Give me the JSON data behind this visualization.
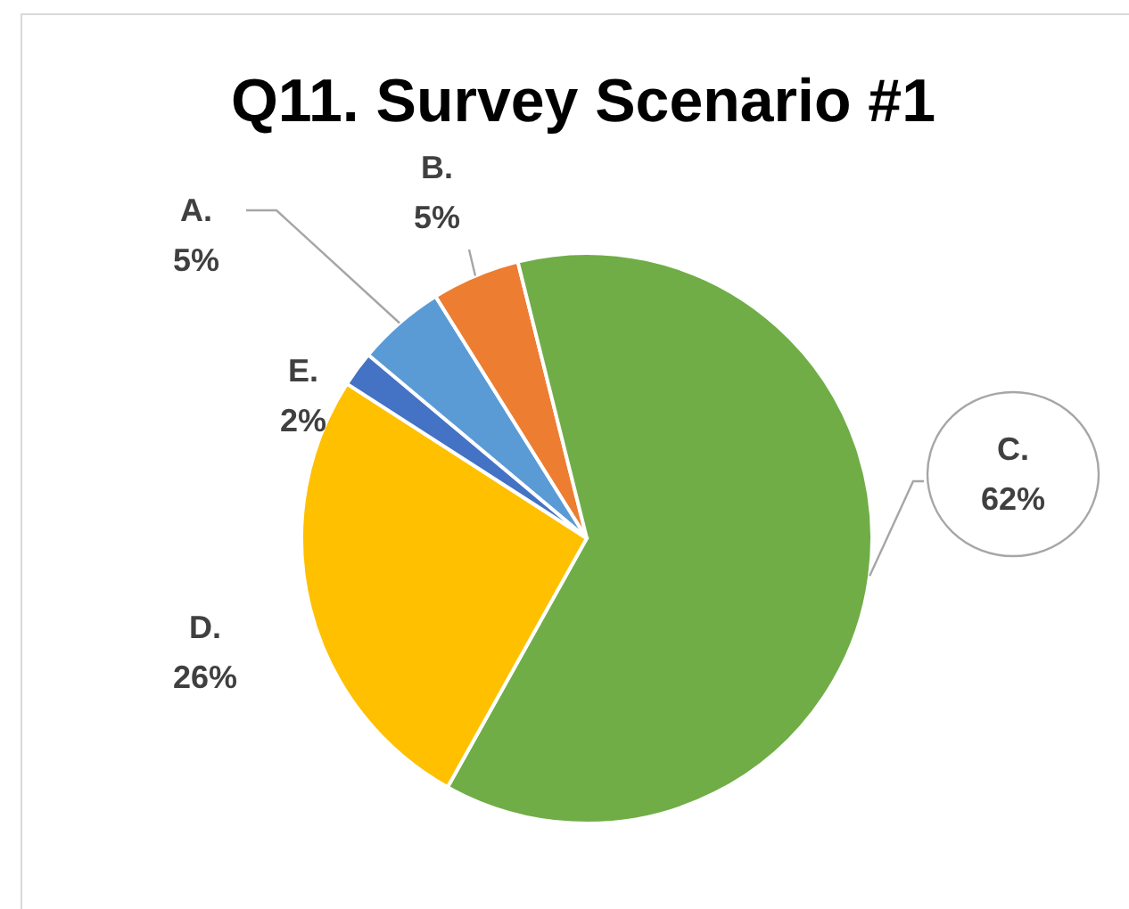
{
  "chart_data": {
    "type": "pie",
    "title": "Q11. Survey Scenario #1",
    "categories": [
      "A.",
      "B.",
      "C.",
      "D.",
      "E."
    ],
    "values": [
      5,
      5,
      62,
      26,
      2
    ],
    "colors": [
      "#5b9bd5",
      "#ed7d31",
      "#70ad47",
      "#ffc000",
      "#4472c4"
    ],
    "value_labels": [
      "5%",
      "5%",
      "62%",
      "26%",
      "2%"
    ]
  }
}
